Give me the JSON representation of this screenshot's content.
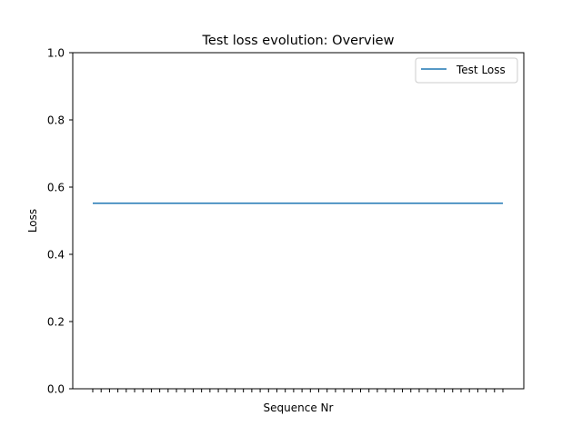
{
  "chart_data": {
    "type": "line",
    "title": "Test loss evolution: Overview",
    "xlabel": "Sequence Nr",
    "ylabel": "Loss",
    "ylim": [
      0.0,
      1.0
    ],
    "yticks": [
      "0.0",
      "0.2",
      "0.4",
      "0.6",
      "0.8",
      "1.0"
    ],
    "x_tick_count": 50,
    "x_tick_labels_visible": false,
    "grid": false,
    "legend_position": "top-right",
    "series": [
      {
        "name": "Test Loss",
        "color": "#1f77b4",
        "x": [
          0,
          1,
          2,
          3,
          4,
          5,
          6,
          7,
          8,
          9,
          10,
          11,
          12,
          13,
          14,
          15,
          16,
          17,
          18,
          19,
          20,
          21,
          22,
          23,
          24,
          25,
          26,
          27,
          28,
          29,
          30,
          31,
          32,
          33,
          34,
          35,
          36,
          37,
          38,
          39,
          40,
          41,
          42,
          43,
          44,
          45,
          46,
          47,
          48,
          49
        ],
        "values": [
          0.552,
          0.552,
          0.552,
          0.552,
          0.552,
          0.552,
          0.552,
          0.552,
          0.552,
          0.552,
          0.552,
          0.552,
          0.552,
          0.552,
          0.552,
          0.552,
          0.552,
          0.552,
          0.552,
          0.552,
          0.552,
          0.552,
          0.552,
          0.552,
          0.552,
          0.552,
          0.552,
          0.552,
          0.552,
          0.552,
          0.552,
          0.552,
          0.552,
          0.552,
          0.552,
          0.552,
          0.552,
          0.552,
          0.552,
          0.552,
          0.552,
          0.552,
          0.552,
          0.552,
          0.552,
          0.552,
          0.552,
          0.552,
          0.552,
          0.552
        ]
      }
    ]
  }
}
